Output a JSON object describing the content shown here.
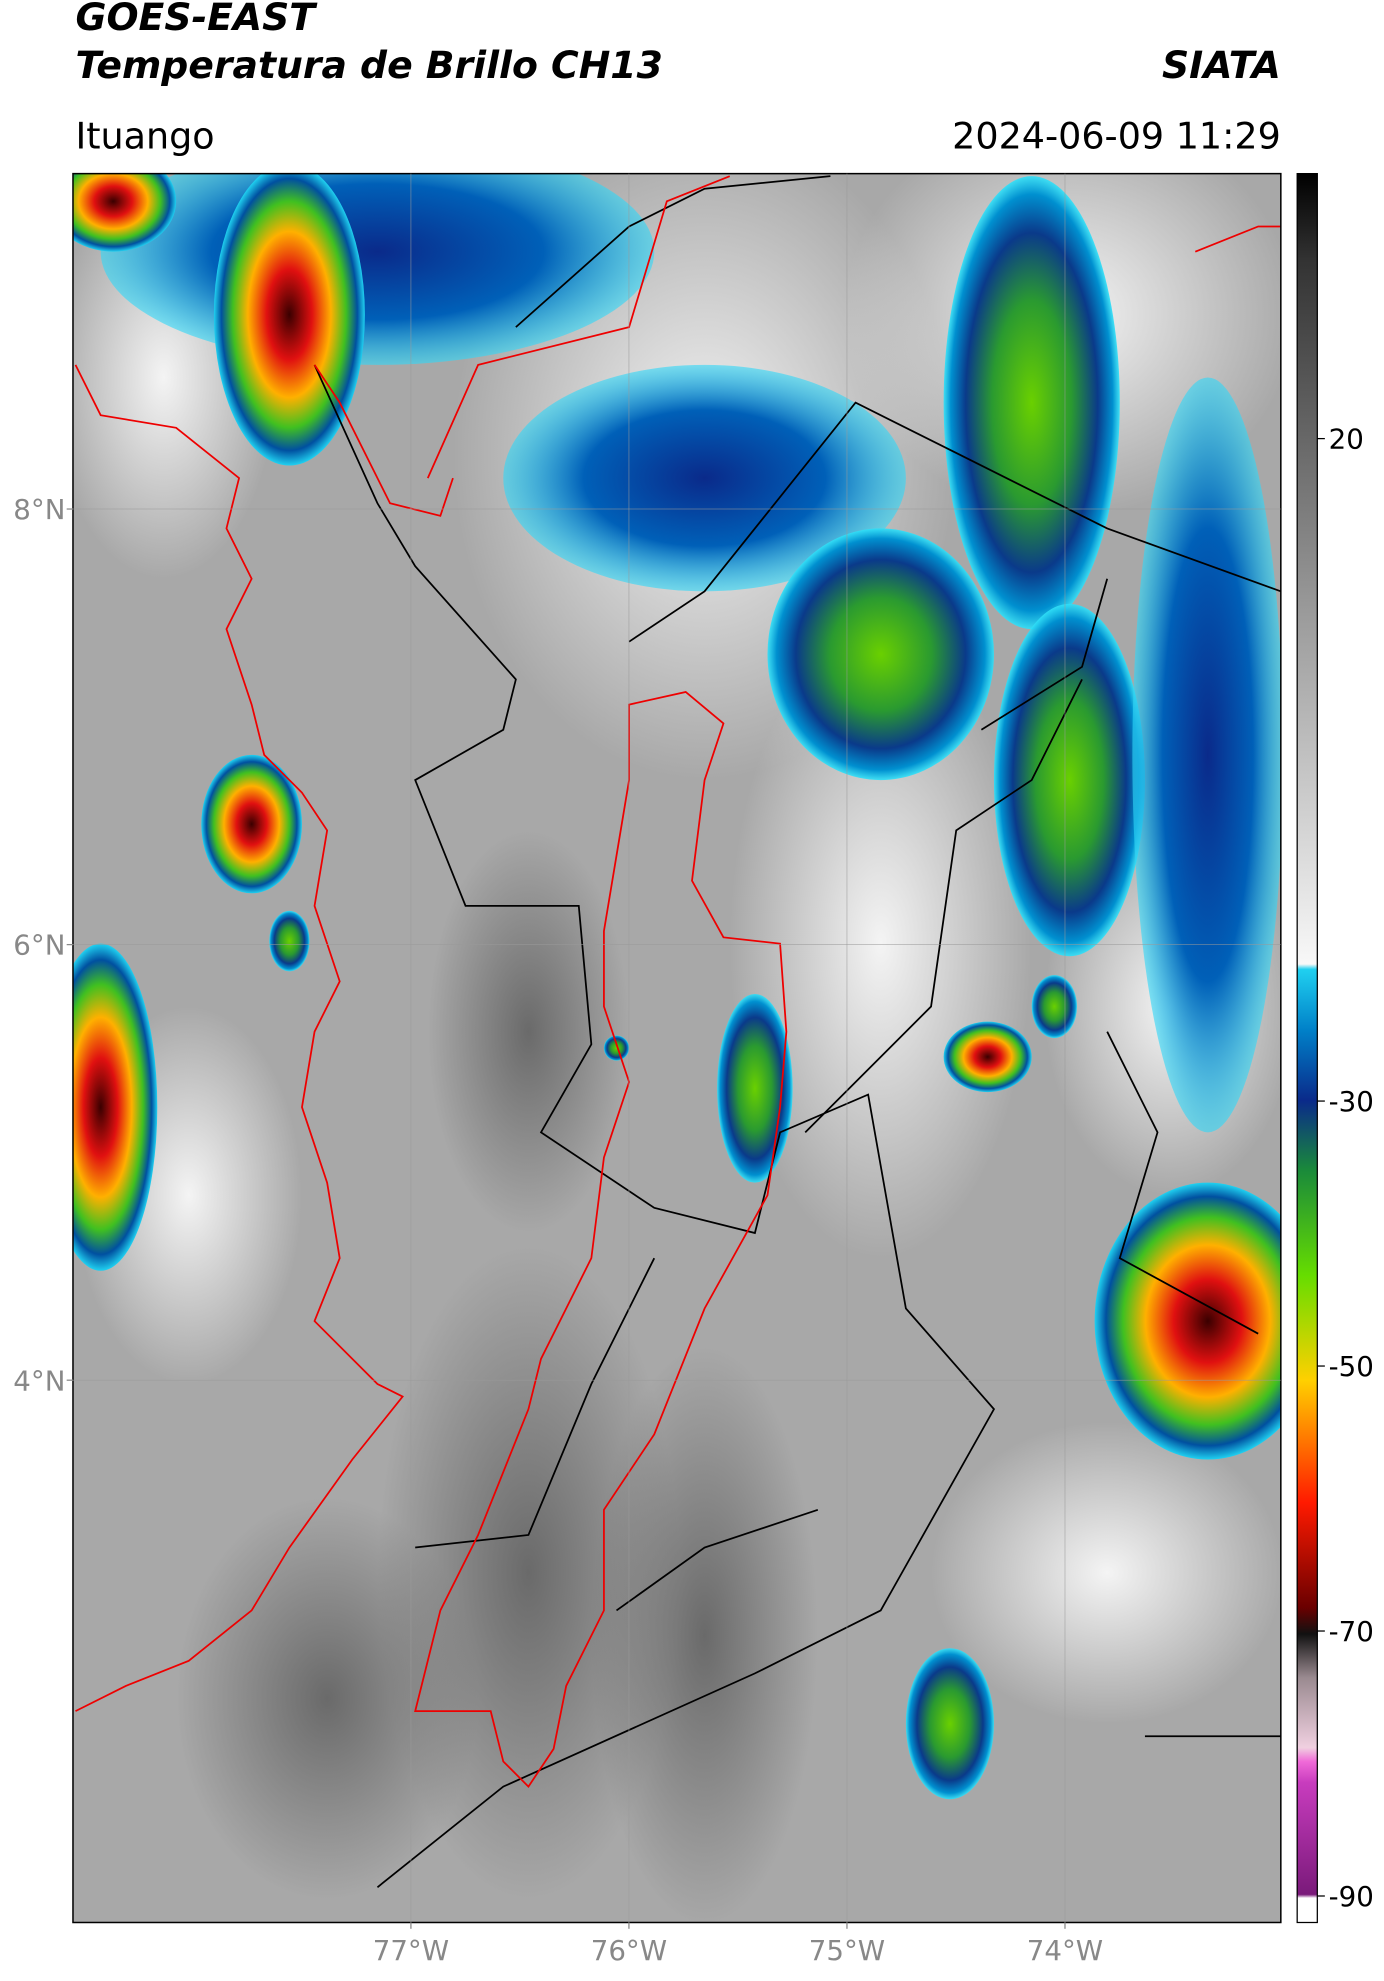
{
  "header": {
    "title": "GOES-EAST",
    "subtitle": "Temperatura de Brillo CH13",
    "brand": "SIATA",
    "region": "Ituango",
    "datetime": "2024-06-09 11:29"
  },
  "map": {
    "xlim": [
      -78.55,
      -73.01
    ],
    "ylim": [
      1.51,
      9.54
    ],
    "xticks": [
      {
        "value": -77,
        "label": "77°W"
      },
      {
        "value": -76,
        "label": "76°W"
      },
      {
        "value": -75,
        "label": "75°W"
      },
      {
        "value": -74,
        "label": "74°W"
      }
    ],
    "yticks": [
      {
        "value": 8,
        "label": "8°N"
      },
      {
        "value": 6,
        "label": "6°N"
      },
      {
        "value": 4,
        "label": "4°N"
      }
    ],
    "grid": true
  },
  "colorbar": {
    "lim": [
      -92,
      40
    ],
    "ticks": [
      20,
      -30,
      -50,
      -70,
      -90
    ]
  }
}
